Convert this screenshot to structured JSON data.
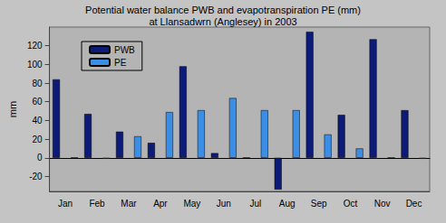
{
  "chart_data": {
    "type": "bar",
    "title": "Potential water balance PWB and evapotranspiration PE (mm)",
    "subtitle": "at Llansadwrn (Anglesey) in 2003",
    "y_label": "mm",
    "categories": [
      "Jan",
      "Feb",
      "Mar",
      "Apr",
      "May",
      "Jun",
      "Jul",
      "Aug",
      "Sep",
      "Oct",
      "Nov",
      "Dec"
    ],
    "series": [
      {
        "name": "PWB",
        "color": "#0c1a78",
        "values": [
          84,
          47,
          28,
          16,
          98,
          5,
          0,
          -34,
          135,
          46,
          127,
          51
        ]
      },
      {
        "name": "PE",
        "color": "#3a8ee6",
        "values": [
          0,
          -1,
          23,
          49,
          51,
          64,
          51,
          51,
          25,
          10,
          0,
          -1
        ]
      }
    ],
    "ylim": [
      -36,
      140
    ],
    "yticks": [
      -20,
      0,
      20,
      40,
      60,
      80,
      100,
      120
    ],
    "grid": false,
    "legend": "upper left"
  }
}
